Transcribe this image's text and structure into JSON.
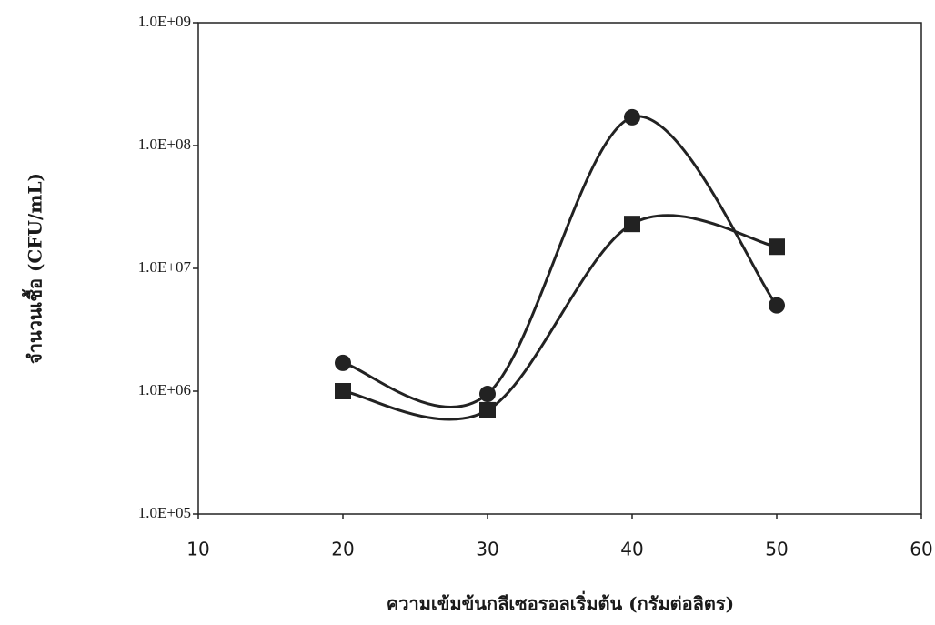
{
  "chart_data": {
    "type": "scatter-smooth",
    "x_label": "ความเข้มข้นกลีเซอรอลเริ่มต้น (กรัมต่อลิตร)",
    "y_label": "จำนวนเชื้อ (CFU/mL)",
    "y_log": true,
    "xlim": [
      10,
      60
    ],
    "xticks": [
      10,
      20,
      30,
      40,
      50,
      60
    ],
    "ylim": [
      100000,
      1000000000
    ],
    "yticks": [
      {
        "value": 100000,
        "label": "1.0E+05"
      },
      {
        "value": 1000000,
        "label": "1.0E+06"
      },
      {
        "value": 10000000,
        "label": "1.0E+07"
      },
      {
        "value": 100000000,
        "label": "1.0E+08"
      },
      {
        "value": 1000000000,
        "label": "1.0E+09"
      }
    ],
    "grid": false,
    "x": [
      20,
      30,
      40,
      50
    ],
    "series": [
      {
        "marker": "circle",
        "color": "#222222",
        "values": [
          1700000,
          950000,
          170000000,
          5000000
        ]
      },
      {
        "marker": "square",
        "color": "#222222",
        "values": [
          1000000,
          700000,
          23000000,
          15000000
        ]
      }
    ]
  }
}
